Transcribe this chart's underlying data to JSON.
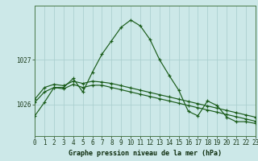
{
  "title": "Graphe pression niveau de la mer (hPa)",
  "bg_color": "#cce8e8",
  "grid_color": "#aacece",
  "line_color": "#1a5c1a",
  "xlim": [
    0,
    23
  ],
  "ylim": [
    1025.3,
    1028.2
  ],
  "yticks": [
    1026,
    1027
  ],
  "xticks": [
    0,
    1,
    2,
    3,
    4,
    5,
    6,
    7,
    8,
    9,
    10,
    11,
    12,
    13,
    14,
    15,
    16,
    17,
    18,
    19,
    20,
    21,
    22,
    23
  ],
  "series1": [
    1025.75,
    1026.05,
    1026.38,
    1026.38,
    1026.58,
    1026.28,
    1026.72,
    1027.12,
    1027.42,
    1027.72,
    1027.88,
    1027.75,
    1027.45,
    1027.0,
    1026.65,
    1026.32,
    1025.85,
    1025.75,
    1026.08,
    1025.98,
    1025.72,
    1025.62,
    1025.62,
    1025.58
  ],
  "series2": [
    1026.12,
    1026.38,
    1026.45,
    1026.42,
    1026.52,
    1026.47,
    1026.52,
    1026.5,
    1026.47,
    1026.42,
    1026.37,
    1026.32,
    1026.27,
    1026.22,
    1026.17,
    1026.12,
    1026.07,
    1026.02,
    1025.97,
    1025.92,
    1025.87,
    1025.82,
    1025.77,
    1025.72
  ],
  "series3": [
    1026.05,
    1026.28,
    1026.38,
    1026.35,
    1026.45,
    1026.38,
    1026.43,
    1026.43,
    1026.38,
    1026.33,
    1026.28,
    1026.23,
    1026.18,
    1026.13,
    1026.08,
    1026.03,
    1025.98,
    1025.93,
    1025.88,
    1025.83,
    1025.78,
    1025.73,
    1025.68,
    1025.63
  ],
  "tick_fontsize": 5.5,
  "xlabel_fontsize": 6.0
}
